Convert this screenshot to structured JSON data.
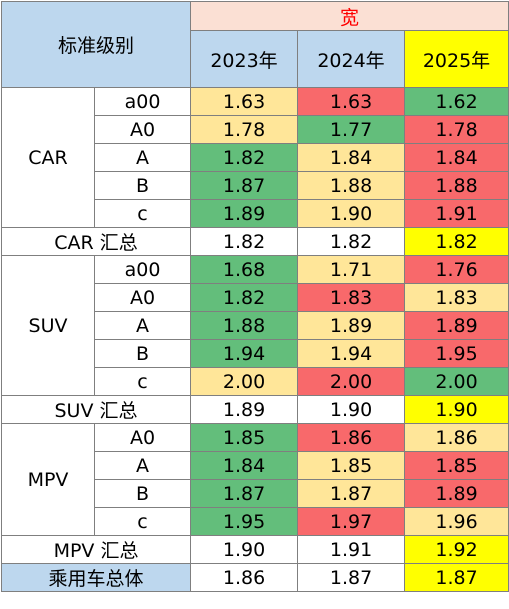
{
  "header": {
    "std_label": "标准级别",
    "metric_label": "宽",
    "years": [
      "2023年",
      "2024年",
      "2025年"
    ]
  },
  "groups": [
    {
      "name": "CAR",
      "rows": [
        {
          "sub": "a00",
          "values": [
            "1.63",
            "1.63",
            "1.62"
          ],
          "colors": [
            "yellow",
            "red",
            "green"
          ]
        },
        {
          "sub": "A0",
          "values": [
            "1.78",
            "1.77",
            "1.78"
          ],
          "colors": [
            "yellow",
            "green",
            "red"
          ]
        },
        {
          "sub": "A",
          "values": [
            "1.82",
            "1.84",
            "1.84"
          ],
          "colors": [
            "green",
            "yellow",
            "red"
          ]
        },
        {
          "sub": "B",
          "values": [
            "1.87",
            "1.88",
            "1.88"
          ],
          "colors": [
            "green",
            "yellow",
            "red"
          ]
        },
        {
          "sub": "c",
          "values": [
            "1.89",
            "1.90",
            "1.91"
          ],
          "colors": [
            "green",
            "yellow",
            "red"
          ]
        }
      ],
      "total": {
        "label": "CAR 汇总",
        "values": [
          "1.82",
          "1.82",
          "1.82"
        ]
      }
    },
    {
      "name": "SUV",
      "rows": [
        {
          "sub": "a00",
          "values": [
            "1.68",
            "1.71",
            "1.76"
          ],
          "colors": [
            "green",
            "yellow",
            "red"
          ]
        },
        {
          "sub": "A0",
          "values": [
            "1.82",
            "1.83",
            "1.83"
          ],
          "colors": [
            "green",
            "red",
            "yellow"
          ]
        },
        {
          "sub": "A",
          "values": [
            "1.88",
            "1.89",
            "1.89"
          ],
          "colors": [
            "green",
            "yellow",
            "red"
          ]
        },
        {
          "sub": "B",
          "values": [
            "1.94",
            "1.94",
            "1.95"
          ],
          "colors": [
            "green",
            "yellow",
            "red"
          ]
        },
        {
          "sub": "c",
          "values": [
            "2.00",
            "2.00",
            "2.00"
          ],
          "colors": [
            "yellow",
            "red",
            "green"
          ]
        }
      ],
      "total": {
        "label": "SUV 汇总",
        "values": [
          "1.89",
          "1.90",
          "1.90"
        ]
      }
    },
    {
      "name": "MPV",
      "rows": [
        {
          "sub": "A0",
          "values": [
            "1.85",
            "1.86",
            "1.86"
          ],
          "colors": [
            "green",
            "red",
            "yellow"
          ]
        },
        {
          "sub": "A",
          "values": [
            "1.84",
            "1.85",
            "1.85"
          ],
          "colors": [
            "green",
            "yellow",
            "red"
          ]
        },
        {
          "sub": "B",
          "values": [
            "1.87",
            "1.87",
            "1.89"
          ],
          "colors": [
            "green",
            "yellow",
            "red"
          ]
        },
        {
          "sub": "c",
          "values": [
            "1.95",
            "1.97",
            "1.96"
          ],
          "colors": [
            "green",
            "red",
            "yellow"
          ]
        }
      ],
      "total": {
        "label": "MPV 汇总",
        "values": [
          "1.90",
          "1.91",
          "1.92"
        ]
      }
    }
  ],
  "grand_total": {
    "label": "乘用车总体",
    "values": [
      "1.86",
      "1.87",
      "1.87"
    ]
  },
  "colors": {
    "green": "#63be7b",
    "yellow": "#ffe699",
    "red": "#f8696b",
    "highlight": "#ffff00",
    "header_blue": "#bdd7ee",
    "header_pink": "#fbe0d4"
  }
}
